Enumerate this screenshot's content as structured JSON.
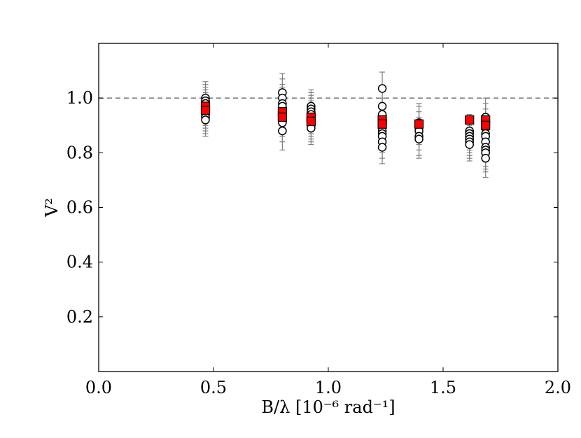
{
  "chart_data": {
    "type": "scatter",
    "title": "",
    "xlabel": "B/λ [10⁻⁶ rad⁻¹]",
    "ylabel": "V²",
    "xlim": [
      0.0,
      2.0
    ],
    "ylim": [
      0.0,
      1.2
    ],
    "xticks": [
      "0.0",
      "0.5",
      "1.0",
      "1.5",
      "2.0"
    ],
    "yticks": [
      "0.2",
      "0.4",
      "0.6",
      "0.8",
      "1.0"
    ],
    "reference_line": {
      "y": 1.0,
      "style": "dashed",
      "color": "#808080"
    },
    "colors": {
      "measured": "#ffffff",
      "measured_edge": "#000000",
      "model": "#ff0000",
      "errorbar": "#808080"
    },
    "series": [
      {
        "marker": "open-circle",
        "points": [
          {
            "x": 0.465,
            "y": 1.0,
            "err": 0.06
          },
          {
            "x": 0.465,
            "y": 0.99,
            "err": 0.06
          },
          {
            "x": 0.465,
            "y": 0.98,
            "err": 0.06
          },
          {
            "x": 0.465,
            "y": 0.97,
            "err": 0.06
          },
          {
            "x": 0.465,
            "y": 0.96,
            "err": 0.06
          },
          {
            "x": 0.465,
            "y": 0.95,
            "err": 0.06
          },
          {
            "x": 0.465,
            "y": 0.94,
            "err": 0.06
          },
          {
            "x": 0.465,
            "y": 0.93,
            "err": 0.06
          },
          {
            "x": 0.465,
            "y": 0.92,
            "err": 0.06
          },
          {
            "x": 0.8,
            "y": 1.02,
            "err": 0.07
          },
          {
            "x": 0.8,
            "y": 1.0,
            "err": 0.07
          },
          {
            "x": 0.8,
            "y": 0.98,
            "err": 0.07
          },
          {
            "x": 0.8,
            "y": 0.97,
            "err": 0.07
          },
          {
            "x": 0.8,
            "y": 0.95,
            "err": 0.07
          },
          {
            "x": 0.8,
            "y": 0.94,
            "err": 0.07
          },
          {
            "x": 0.8,
            "y": 0.93,
            "err": 0.07
          },
          {
            "x": 0.8,
            "y": 0.91,
            "err": 0.07
          },
          {
            "x": 0.8,
            "y": 0.88,
            "err": 0.07
          },
          {
            "x": 0.925,
            "y": 0.97,
            "err": 0.06
          },
          {
            "x": 0.925,
            "y": 0.96,
            "err": 0.06
          },
          {
            "x": 0.925,
            "y": 0.95,
            "err": 0.06
          },
          {
            "x": 0.925,
            "y": 0.94,
            "err": 0.06
          },
          {
            "x": 0.925,
            "y": 0.93,
            "err": 0.06
          },
          {
            "x": 0.925,
            "y": 0.92,
            "err": 0.06
          },
          {
            "x": 0.925,
            "y": 0.91,
            "err": 0.06
          },
          {
            "x": 0.925,
            "y": 0.9,
            "err": 0.06
          },
          {
            "x": 0.925,
            "y": 0.89,
            "err": 0.06
          },
          {
            "x": 1.235,
            "y": 1.035,
            "err": 0.06
          },
          {
            "x": 1.235,
            "y": 0.97,
            "err": 0.06
          },
          {
            "x": 1.235,
            "y": 0.94,
            "err": 0.06
          },
          {
            "x": 1.235,
            "y": 0.92,
            "err": 0.06
          },
          {
            "x": 1.235,
            "y": 0.9,
            "err": 0.06
          },
          {
            "x": 1.235,
            "y": 0.88,
            "err": 0.06
          },
          {
            "x": 1.235,
            "y": 0.87,
            "err": 0.06
          },
          {
            "x": 1.235,
            "y": 0.86,
            "err": 0.06
          },
          {
            "x": 1.235,
            "y": 0.84,
            "err": 0.06
          },
          {
            "x": 1.235,
            "y": 0.82,
            "err": 0.06
          },
          {
            "x": 1.395,
            "y": 0.91,
            "err": 0.07
          },
          {
            "x": 1.395,
            "y": 0.9,
            "err": 0.07
          },
          {
            "x": 1.395,
            "y": 0.88,
            "err": 0.07
          },
          {
            "x": 1.395,
            "y": 0.86,
            "err": 0.07
          },
          {
            "x": 1.395,
            "y": 0.85,
            "err": 0.07
          },
          {
            "x": 1.615,
            "y": 0.88,
            "err": 0.06
          },
          {
            "x": 1.615,
            "y": 0.87,
            "err": 0.06
          },
          {
            "x": 1.615,
            "y": 0.86,
            "err": 0.06
          },
          {
            "x": 1.615,
            "y": 0.85,
            "err": 0.06
          },
          {
            "x": 1.615,
            "y": 0.84,
            "err": 0.06
          },
          {
            "x": 1.615,
            "y": 0.83,
            "err": 0.06
          },
          {
            "x": 1.685,
            "y": 0.93,
            "err": 0.07
          },
          {
            "x": 1.685,
            "y": 0.91,
            "err": 0.07
          },
          {
            "x": 1.685,
            "y": 0.89,
            "err": 0.07
          },
          {
            "x": 1.685,
            "y": 0.87,
            "err": 0.07
          },
          {
            "x": 1.685,
            "y": 0.86,
            "err": 0.07
          },
          {
            "x": 1.685,
            "y": 0.84,
            "err": 0.07
          },
          {
            "x": 1.685,
            "y": 0.82,
            "err": 0.07
          },
          {
            "x": 1.685,
            "y": 0.81,
            "err": 0.07
          },
          {
            "x": 1.685,
            "y": 0.8,
            "err": 0.07
          },
          {
            "x": 1.685,
            "y": 0.78,
            "err": 0.07
          }
        ]
      },
      {
        "marker": "filled-square",
        "points": [
          {
            "x": 0.465,
            "y": 0.97
          },
          {
            "x": 0.465,
            "y": 0.955
          },
          {
            "x": 0.8,
            "y": 0.95
          },
          {
            "x": 0.8,
            "y": 0.93
          },
          {
            "x": 0.925,
            "y": 0.93
          },
          {
            "x": 0.925,
            "y": 0.915
          },
          {
            "x": 1.235,
            "y": 0.92
          },
          {
            "x": 1.235,
            "y": 0.905
          },
          {
            "x": 1.395,
            "y": 0.905
          },
          {
            "x": 1.615,
            "y": 0.92
          },
          {
            "x": 1.685,
            "y": 0.92
          },
          {
            "x": 1.685,
            "y": 0.9
          }
        ]
      }
    ]
  }
}
